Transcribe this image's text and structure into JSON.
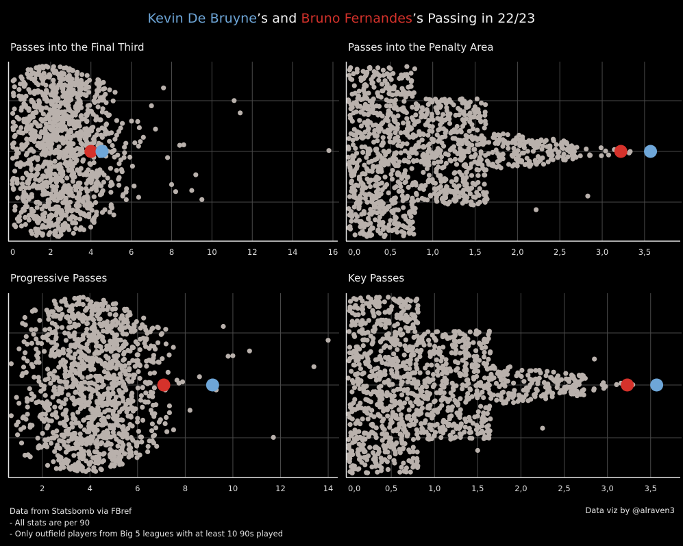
{
  "title": {
    "player1": "Kevin De Bruyne",
    "sep1": "’s and ",
    "player2": "Bruno Fernandes",
    "sep2": "’s Passing in 22/23"
  },
  "colors": {
    "player1": "#6ea6d8",
    "player2": "#d5322b",
    "dots": "#b9b1ac",
    "grid": "#4a4a4a",
    "axis": "#e6e6e6",
    "background": "#000000"
  },
  "footer": {
    "source": "Data from Statsbomb via FBref",
    "note1": "- All stats are per 90",
    "note2": "- Only outfield players from Big 5 leagues with at least 10 90s played",
    "credit": "Data viz by @alraven3"
  },
  "chart_data": [
    {
      "type": "scatter",
      "subtype": "beeswarm",
      "title": "Passes into the Final Third",
      "xlabel": "",
      "ylabel": "",
      "xlim": [
        0,
        16
      ],
      "xticks": [
        "0",
        "2",
        "4",
        "6",
        "8",
        "10",
        "12",
        "14",
        "16"
      ],
      "grid": true,
      "highlights": [
        {
          "player": "Bruno Fernandes",
          "value": 4.0,
          "color": "#d5322b"
        },
        {
          "player": "Kevin De Bruyne",
          "value": 4.55,
          "color": "#6ea6d8"
        }
      ],
      "distribution": {
        "count": 1150,
        "shape": "skewed",
        "mode": 2.0,
        "spread": 1.6,
        "max_body": 6.5,
        "outliers": [
          6.4,
          6.6,
          7.0,
          7.2,
          7.6,
          7.8,
          8.0,
          8.2,
          8.4,
          8.6,
          9.0,
          9.2,
          9.5,
          11.1,
          11.4,
          15.8
        ]
      }
    },
    {
      "type": "scatter",
      "subtype": "beeswarm",
      "title": "Passes into the Penalty Area",
      "xlabel": "",
      "ylabel": "",
      "xlim": [
        0,
        3.8
      ],
      "xticks": [
        "0,0",
        "0,5",
        "1,0",
        "1,5",
        "2,0",
        "2,5",
        "3,0",
        "3,5"
      ],
      "grid": true,
      "highlights": [
        {
          "player": "Bruno Fernandes",
          "value": 3.22,
          "color": "#d5322b"
        },
        {
          "player": "Kevin De Bruyne",
          "value": 3.57,
          "color": "#6ea6d8"
        }
      ],
      "distribution": {
        "count": 1250,
        "shape": "tiered",
        "tiers": [
          [
            0,
            0.8,
            1.0
          ],
          [
            0.8,
            1.65,
            0.62
          ],
          [
            1.65,
            2.7,
            0.2
          ],
          [
            2.7,
            3.35,
            0.03
          ]
        ],
        "outliers": [
          1.48,
          2.22,
          2.83
        ]
      }
    },
    {
      "type": "scatter",
      "subtype": "beeswarm",
      "title": "Progressive Passes",
      "xlabel": "",
      "ylabel": "",
      "xlim": [
        0.6,
        14.2
      ],
      "xticks": [
        "2",
        "4",
        "6",
        "8",
        "10",
        "12",
        "14"
      ],
      "grid": true,
      "highlights": [
        {
          "player": "Bruno Fernandes",
          "value": 7.1,
          "color": "#d5322b"
        },
        {
          "player": "Kevin De Bruyne",
          "value": 9.15,
          "color": "#6ea6d8"
        }
      ],
      "distribution": {
        "count": 1150,
        "shape": "skewed",
        "mode": 3.6,
        "spread": 1.55,
        "max_body": 8.3,
        "outliers": [
          8.6,
          9.0,
          9.3,
          9.6,
          9.8,
          10.0,
          10.7,
          11.7,
          13.4,
          14.0
        ]
      }
    },
    {
      "type": "scatter",
      "subtype": "beeswarm",
      "title": "Key Passes",
      "xlabel": "",
      "ylabel": "",
      "xlim": [
        0,
        3.7
      ],
      "xticks": [
        "0,0",
        "0,5",
        "1,0",
        "1,5",
        "2,0",
        "2,5",
        "3,0",
        "3,5"
      ],
      "grid": true,
      "highlights": [
        {
          "player": "Bruno Fernandes",
          "value": 3.23,
          "color": "#d5322b"
        },
        {
          "player": "Kevin De Bruyne",
          "value": 3.57,
          "color": "#6ea6d8"
        }
      ],
      "distribution": {
        "count": 1250,
        "shape": "tiered",
        "tiers": [
          [
            0,
            0.82,
            1.0
          ],
          [
            0.82,
            1.65,
            0.62
          ],
          [
            1.65,
            2.75,
            0.2
          ],
          [
            2.75,
            3.3,
            0.03
          ]
        ],
        "outliers": [
          1.5,
          2.25,
          2.85
        ]
      }
    }
  ],
  "panels": [
    {
      "title": "Passes into the Final Third"
    },
    {
      "title": "Passes into the Penalty Area"
    },
    {
      "title": "Progressive Passes"
    },
    {
      "title": "Key Passes"
    }
  ]
}
